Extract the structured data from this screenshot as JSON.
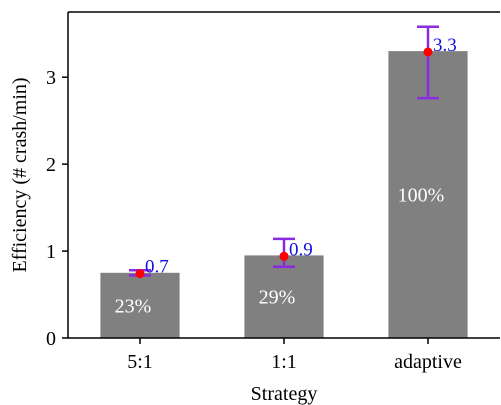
{
  "chart_data": {
    "type": "bar",
    "xlabel": "Strategy",
    "ylabel": "Efficiency (# crash/min)",
    "ylim": [
      0,
      3.75
    ],
    "yticks": [
      0,
      1,
      2,
      3
    ],
    "grid": false,
    "categories": [
      "5:1",
      "1:1",
      "adaptive"
    ],
    "values": [
      0.75,
      0.95,
      3.3
    ],
    "points": [
      0.74,
      0.94,
      3.29
    ],
    "error_low": [
      0.72,
      0.82,
      2.76
    ],
    "error_high": [
      0.78,
      1.14,
      3.58
    ],
    "value_labels": [
      "0.7",
      "0.9",
      "3.3"
    ],
    "bar_labels": [
      "23%",
      "29%",
      "100%"
    ],
    "colors": {
      "bar": "#808080",
      "point": "#ff0000",
      "errorbar": "#8a2be2",
      "value_label": "#1010e0",
      "bar_label": "#ffffff"
    }
  }
}
